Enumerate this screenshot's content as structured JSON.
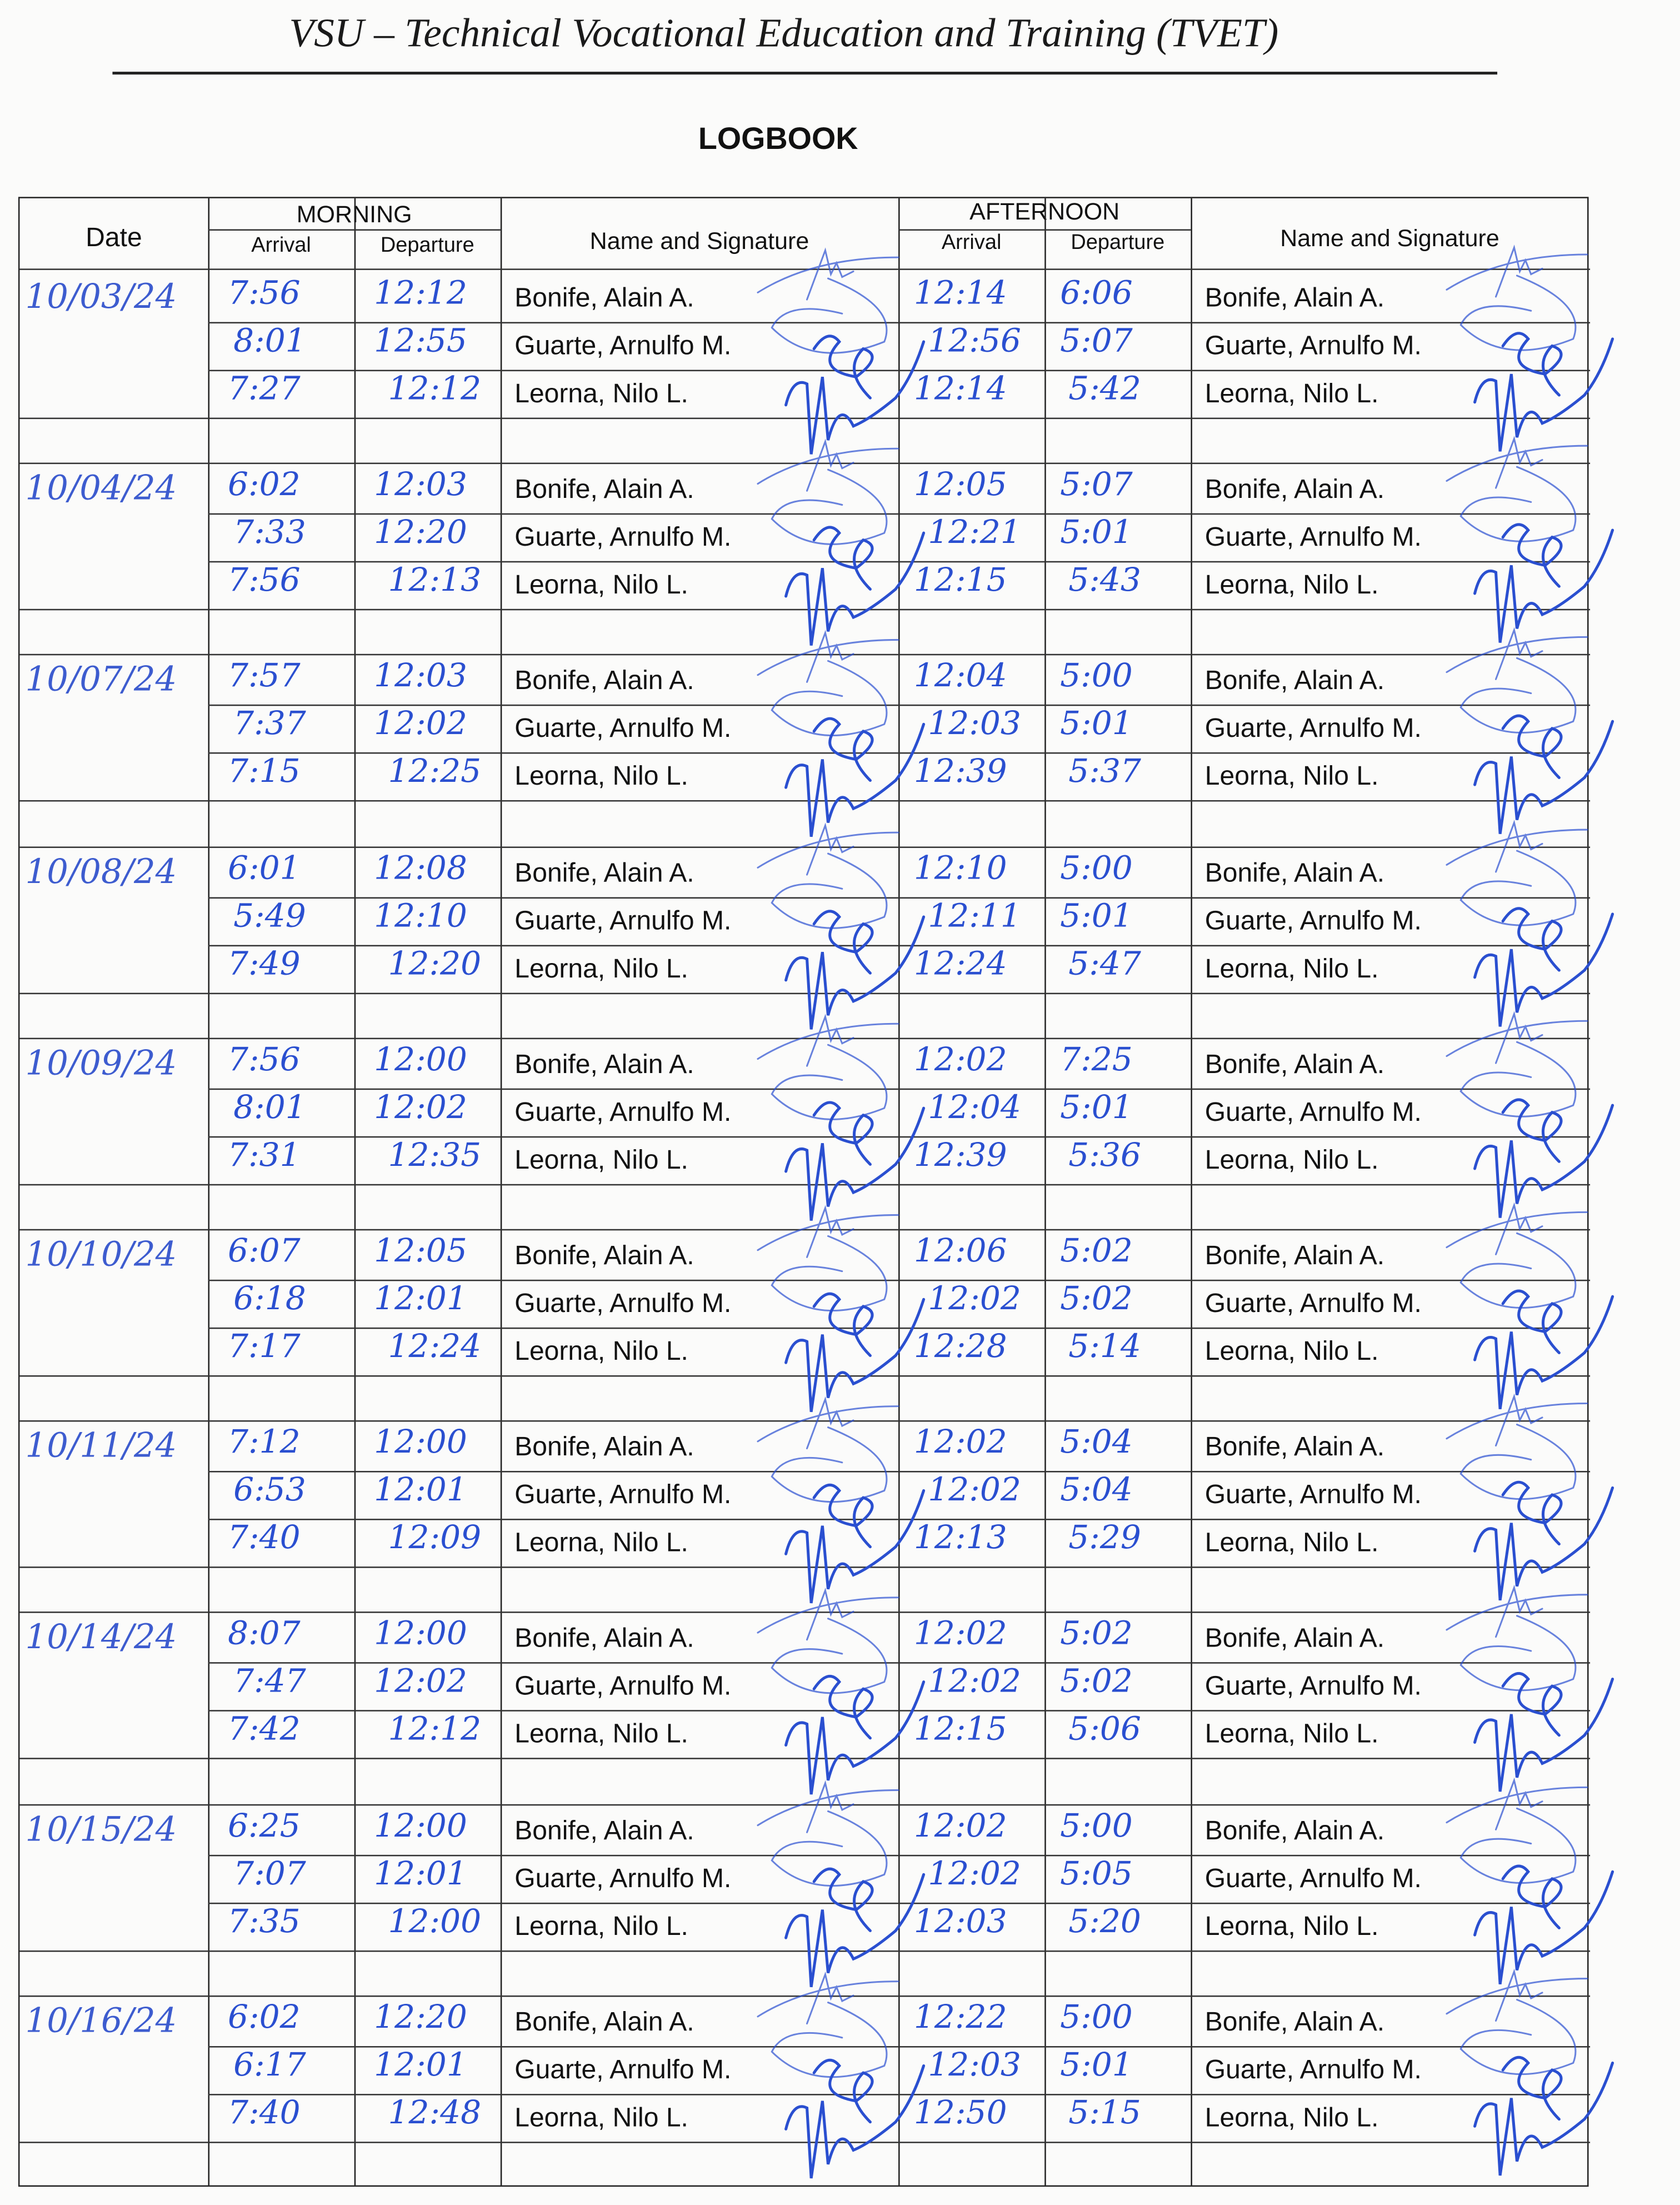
{
  "header": {
    "title": "VSU – Technical Vocational Education and Training (TVET)",
    "subtitle": "LOGBOOK"
  },
  "table": {
    "col_date": "Date",
    "morning": "MORNING",
    "afternoon": "AFTERNOON",
    "arrival": "Arrival",
    "departure": "Departure",
    "name_signature": "Name and Signature"
  },
  "ink_color": "#2a4fd0",
  "days": [
    {
      "date": "10/03/24",
      "entries": [
        {
          "name": "Bonife, Alain A.",
          "am_arrival": "7:56",
          "am_departure": "12:12",
          "pm_arrival": "12:14",
          "pm_departure": "6:06"
        },
        {
          "name": "Guarte, Arnulfo M.",
          "am_arrival": "8:01",
          "am_departure": "12:55",
          "pm_arrival": "12:56",
          "pm_departure": "5:07"
        },
        {
          "name": "Leorna, Nilo L.",
          "am_arrival": "7:27",
          "am_departure": "12:12",
          "pm_arrival": "12:14",
          "pm_departure": "5:42"
        }
      ]
    },
    {
      "date": "10/04/24",
      "entries": [
        {
          "name": "Bonife, Alain A.",
          "am_arrival": "6:02",
          "am_departure": "12:03",
          "pm_arrival": "12:05",
          "pm_departure": "5:07"
        },
        {
          "name": "Guarte, Arnulfo M.",
          "am_arrival": "7:33",
          "am_departure": "12:20",
          "pm_arrival": "12:21",
          "pm_departure": "5:01"
        },
        {
          "name": "Leorna, Nilo L.",
          "am_arrival": "7:56",
          "am_departure": "12:13",
          "pm_arrival": "12:15",
          "pm_departure": "5:43"
        }
      ]
    },
    {
      "date": "10/07/24",
      "entries": [
        {
          "name": "Bonife, Alain A.",
          "am_arrival": "7:57",
          "am_departure": "12:03",
          "pm_arrival": "12:04",
          "pm_departure": "5:00"
        },
        {
          "name": "Guarte, Arnulfo M.",
          "am_arrival": "7:37",
          "am_departure": "12:02",
          "pm_arrival": "12:03",
          "pm_departure": "5:01"
        },
        {
          "name": "Leorna, Nilo L.",
          "am_arrival": "7:15",
          "am_departure": "12:25",
          "pm_arrival": "12:39",
          "pm_departure": "5:37"
        }
      ]
    },
    {
      "date": "10/08/24",
      "entries": [
        {
          "name": "Bonife, Alain A.",
          "am_arrival": "6:01",
          "am_departure": "12:08",
          "pm_arrival": "12:10",
          "pm_departure": "5:00"
        },
        {
          "name": "Guarte, Arnulfo M.",
          "am_arrival": "5:49",
          "am_departure": "12:10",
          "pm_arrival": "12:11",
          "pm_departure": "5:01"
        },
        {
          "name": "Leorna, Nilo L.",
          "am_arrival": "7:49",
          "am_departure": "12:20",
          "pm_arrival": "12:24",
          "pm_departure": "5:47"
        }
      ]
    },
    {
      "date": "10/09/24",
      "entries": [
        {
          "name": "Bonife, Alain A.",
          "am_arrival": "7:56",
          "am_departure": "12:00",
          "pm_arrival": "12:02",
          "pm_departure": "7:25"
        },
        {
          "name": "Guarte, Arnulfo M.",
          "am_arrival": "8:01",
          "am_departure": "12:02",
          "pm_arrival": "12:04",
          "pm_departure": "5:01"
        },
        {
          "name": "Leorna, Nilo L.",
          "am_arrival": "7:31",
          "am_departure": "12:35",
          "pm_arrival": "12:39",
          "pm_departure": "5:36"
        }
      ]
    },
    {
      "date": "10/10/24",
      "entries": [
        {
          "name": "Bonife, Alain A.",
          "am_arrival": "6:07",
          "am_departure": "12:05",
          "pm_arrival": "12:06",
          "pm_departure": "5:02"
        },
        {
          "name": "Guarte, Arnulfo M.",
          "am_arrival": "6:18",
          "am_departure": "12:01",
          "pm_arrival": "12:02",
          "pm_departure": "5:02"
        },
        {
          "name": "Leorna, Nilo L.",
          "am_arrival": "7:17",
          "am_departure": "12:24",
          "pm_arrival": "12:28",
          "pm_departure": "5:14"
        }
      ]
    },
    {
      "date": "10/11/24",
      "entries": [
        {
          "name": "Bonife, Alain A.",
          "am_arrival": "7:12",
          "am_departure": "12:00",
          "pm_arrival": "12:02",
          "pm_departure": "5:04"
        },
        {
          "name": "Guarte, Arnulfo M.",
          "am_arrival": "6:53",
          "am_departure": "12:01",
          "pm_arrival": "12:02",
          "pm_departure": "5:04"
        },
        {
          "name": "Leorna, Nilo L.",
          "am_arrival": "7:40",
          "am_departure": "12:09",
          "pm_arrival": "12:13",
          "pm_departure": "5:29"
        }
      ]
    },
    {
      "date": "10/14/24",
      "entries": [
        {
          "name": "Bonife, Alain A.",
          "am_arrival": "8:07",
          "am_departure": "12:00",
          "pm_arrival": "12:02",
          "pm_departure": "5:02"
        },
        {
          "name": "Guarte, Arnulfo M.",
          "am_arrival": "7:47",
          "am_departure": "12:02",
          "pm_arrival": "12:02",
          "pm_departure": "5:02"
        },
        {
          "name": "Leorna, Nilo L.",
          "am_arrival": "7:42",
          "am_departure": "12:12",
          "pm_arrival": "12:15",
          "pm_departure": "5:06"
        }
      ]
    },
    {
      "date": "10/15/24",
      "entries": [
        {
          "name": "Bonife, Alain A.",
          "am_arrival": "6:25",
          "am_departure": "12:00",
          "pm_arrival": "12:02",
          "pm_departure": "5:00"
        },
        {
          "name": "Guarte, Arnulfo M.",
          "am_arrival": "7:07",
          "am_departure": "12:01",
          "pm_arrival": "12:02",
          "pm_departure": "5:05"
        },
        {
          "name": "Leorna, Nilo L.",
          "am_arrival": "7:35",
          "am_departure": "12:00",
          "pm_arrival": "12:03",
          "pm_departure": "5:20"
        }
      ]
    },
    {
      "date": "10/16/24",
      "entries": [
        {
          "name": "Bonife, Alain A.",
          "am_arrival": "6:02",
          "am_departure": "12:20",
          "pm_arrival": "12:22",
          "pm_departure": "5:00"
        },
        {
          "name": "Guarte, Arnulfo M.",
          "am_arrival": "6:17",
          "am_departure": "12:01",
          "pm_arrival": "12:03",
          "pm_departure": "5:01"
        },
        {
          "name": "Leorna, Nilo L.",
          "am_arrival": "7:40",
          "am_departure": "12:48",
          "pm_arrival": "12:50",
          "pm_departure": "5:15"
        }
      ]
    }
  ]
}
